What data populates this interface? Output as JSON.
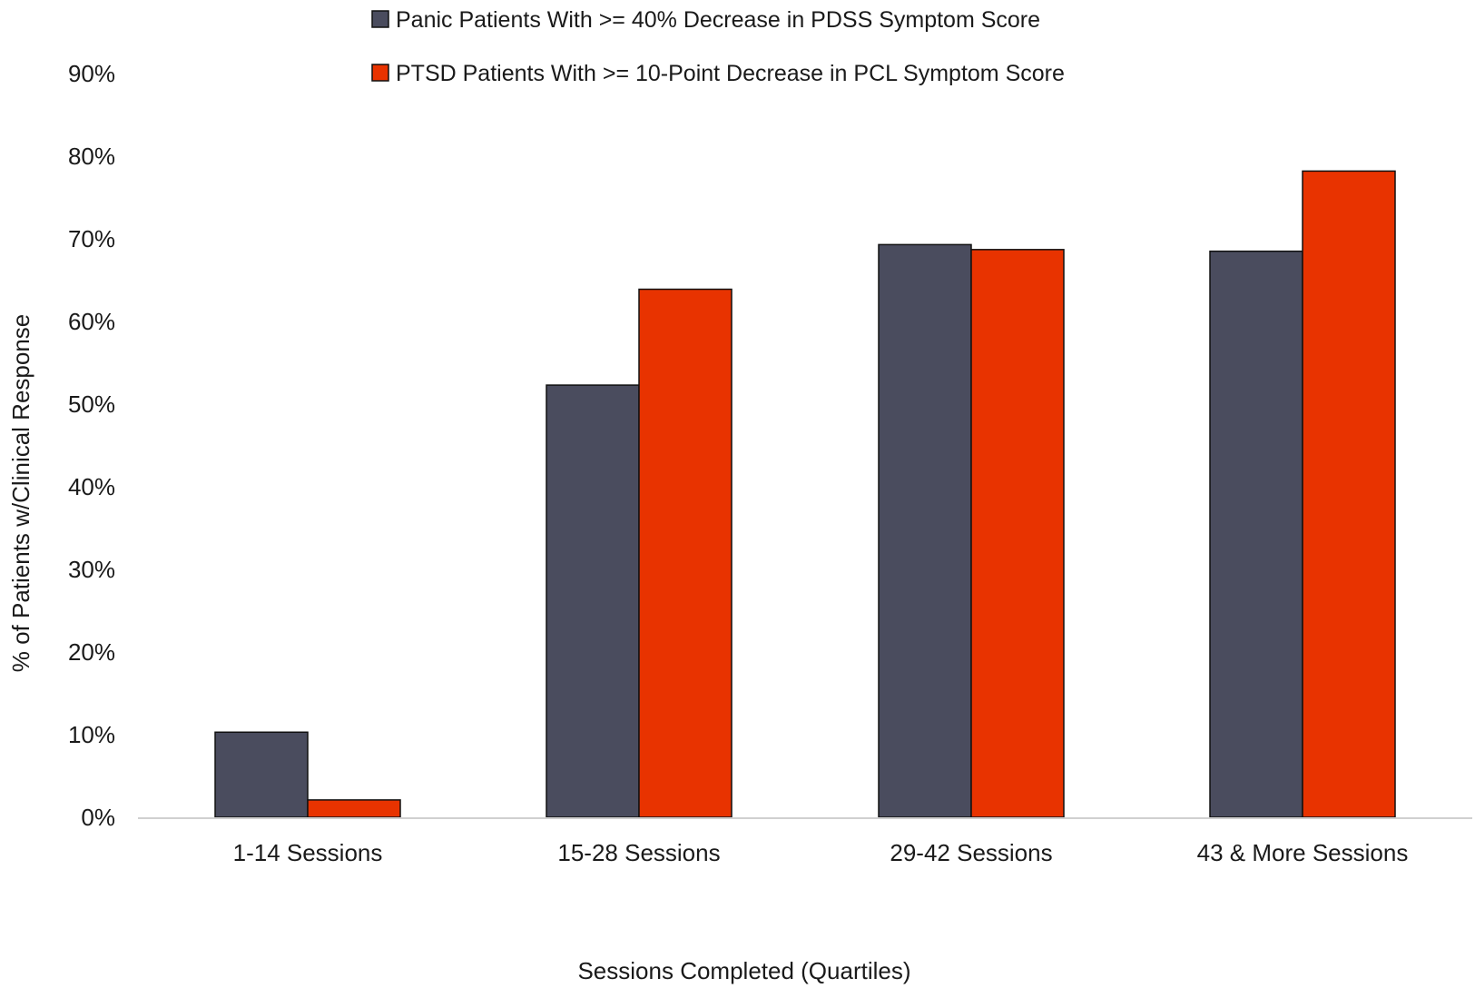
{
  "chart_data": {
    "type": "bar",
    "title": "",
    "xlabel": "Sessions Completed (Quartiles)",
    "ylabel": "% of Patients w/Clinical Response",
    "ylim": [
      0,
      90
    ],
    "yticks": [
      0,
      10,
      20,
      30,
      40,
      50,
      60,
      70,
      80,
      90
    ],
    "ytick_labels": [
      "0%",
      "10%",
      "20%",
      "30%",
      "40%",
      "50%",
      "60%",
      "70%",
      "80%",
      "90%"
    ],
    "categories": [
      "1-14 Sessions",
      "15-28 Sessions",
      "29-42 Sessions",
      "43 & More Sessions"
    ],
    "grid": false,
    "legend_position": "top",
    "series": [
      {
        "name": "Panic Patients With >= 40% Decrease in PDSS Symptom Score",
        "color": "#4a4c5e",
        "values": [
          10.3,
          52.3,
          69.3,
          68.5
        ]
      },
      {
        "name": "PTSD Patients With >= 10-Point Decrease in PCL Symptom Score",
        "color": "#e83300",
        "values": [
          2.1,
          63.9,
          68.7,
          78.2
        ]
      }
    ]
  }
}
